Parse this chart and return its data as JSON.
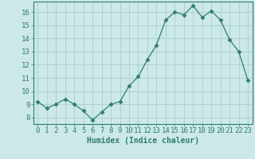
{
  "x": [
    0,
    1,
    2,
    3,
    4,
    5,
    6,
    7,
    8,
    9,
    10,
    11,
    12,
    13,
    14,
    15,
    16,
    17,
    18,
    19,
    20,
    21,
    22,
    23
  ],
  "y": [
    9.2,
    8.7,
    9.0,
    9.4,
    9.0,
    8.5,
    7.8,
    8.4,
    9.0,
    9.2,
    10.4,
    11.1,
    12.4,
    13.5,
    15.4,
    16.0,
    15.8,
    16.5,
    15.6,
    16.1,
    15.4,
    13.9,
    13.0,
    10.8
  ],
  "xlabel": "Humidex (Indice chaleur)",
  "xlim": [
    -0.5,
    23.5
  ],
  "ylim": [
    7.5,
    16.8
  ],
  "yticks": [
    8,
    9,
    10,
    11,
    12,
    13,
    14,
    15,
    16
  ],
  "xticks": [
    0,
    1,
    2,
    3,
    4,
    5,
    6,
    7,
    8,
    9,
    10,
    11,
    12,
    13,
    14,
    15,
    16,
    17,
    18,
    19,
    20,
    21,
    22,
    23
  ],
  "line_color": "#2e7d6e",
  "marker": "D",
  "marker_size": 2.5,
  "background_color": "#cce8e8",
  "grid_color": "#aacece",
  "xlabel_fontsize": 7,
  "tick_fontsize": 6.5
}
